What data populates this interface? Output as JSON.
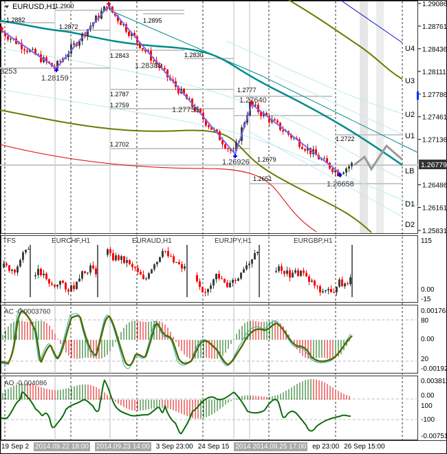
{
  "window": {
    "symbol_label": "EURUSD,H1"
  },
  "price_axis": {
    "ticks": [
      "1.29086",
      "1.28761",
      "1.28436",
      "1.28111",
      "1.27786",
      "1.27461",
      "1.27136",
      "1.26486",
      "1.26161",
      "1.25831"
    ],
    "current_price": "1.26779"
  },
  "levels": [
    "U4",
    "U3",
    "U2",
    "U1",
    "LB",
    "D1",
    "D2"
  ],
  "annotations": {
    "a1": "1.2882",
    "a2": "1.2900",
    "a3": "1.2872",
    "a4": "1.2895",
    "a5": "1.2843",
    "a6": "1.28389",
    "a7": "1.2830",
    "a8": "1.28159",
    "a9": "3253",
    "a10": "1.2787",
    "a11": "1.2759",
    "a12": "1.27735",
    "a13": "1.2777",
    "a14": "1.27640",
    "a15": "1.2702",
    "a16": "1.26926",
    "a17": "1.2679",
    "a18": "1.2722",
    "a19": "1.2651",
    "a20": "1.26658"
  },
  "tfs": {
    "label": "TFS",
    "symbols": [
      "EURCHF,H1",
      "EURAUD,H1",
      "EURJPY,H1",
      "EURGBP,H1"
    ],
    "axis": [
      "115",
      "0.00",
      "-15"
    ]
  },
  "ac": {
    "label": "AC -0.0003760",
    "axis": [
      "0.001765",
      "80",
      "0.00",
      "20",
      "-0.001926"
    ]
  },
  "ao": {
    "label": "AO -0.004086",
    "axis": [
      "0.003811",
      "0.00",
      "100",
      "-100",
      "-0.007512"
    ]
  },
  "time_axis": {
    "labels": [
      "19 Sep 2",
      "2014.09.22 18:00",
      "2014.09.23 14:00",
      "3 Sep 23:00",
      "24 Sep 15",
      "2014  2014.09.25 17:00",
      "ep 23:00",
      "26 Sep 15:00"
    ]
  },
  "colors": {
    "bull": "#3a3f3f",
    "bear": "#ff0000",
    "zigzag": "#7b68ee",
    "teal": "#008080",
    "olive": "#6b7a00",
    "red": "#e00000"
  },
  "chart_data": {
    "type": "candlestick",
    "title": "EURUSD,H1",
    "ylim": [
      1.25831,
      1.29086
    ],
    "zigzag_pivots": [
      {
        "bar": 0,
        "price": 1.287
      },
      {
        "bar": 20,
        "price": 1.28159
      },
      {
        "bar": 39,
        "price": 1.2905
      },
      {
        "bar": 85,
        "price": 1.26926
      },
      {
        "bar": 91,
        "price": 1.2764
      },
      {
        "bar": 123,
        "price": 1.26658
      },
      {
        "bar": 128,
        "price": 1.26779
      }
    ],
    "last_close": 1.26779
  }
}
